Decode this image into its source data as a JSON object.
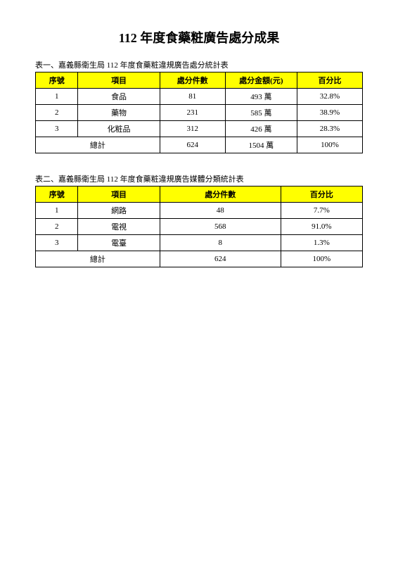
{
  "page_title": "112 年度食藥粧廣告處分成果",
  "table1": {
    "caption": "表一、嘉義縣衛生局 112 年度食藥粧違規廣告處分統計表",
    "columns": [
      "序號",
      "項目",
      "處分件數",
      "處分金額(元)",
      "百分比"
    ],
    "rows": [
      [
        "1",
        "食品",
        "81",
        "493 萬",
        "32.8%"
      ],
      [
        "2",
        "藥物",
        "231",
        "585 萬",
        "38.9%"
      ],
      [
        "3",
        "化粧品",
        "312",
        "426 萬",
        "28.3%"
      ]
    ],
    "total_label": "總計",
    "total_values": [
      "624",
      "1504 萬",
      "100%"
    ],
    "header_bg": "#ffff00",
    "border_color": "#000000",
    "font_size": 11,
    "col_widths": [
      "13%",
      "25%",
      "20%",
      "22%",
      "20%"
    ]
  },
  "table2": {
    "caption": "表二、嘉義縣衛生局 112 年度食藥粧違規廣告媒體分類統計表",
    "columns": [
      "序號",
      "項目",
      "處分件數",
      "百分比"
    ],
    "rows": [
      [
        "1",
        "網路",
        "48",
        "7.7%"
      ],
      [
        "2",
        "電視",
        "568",
        "91.0%"
      ],
      [
        "3",
        "電臺",
        "8",
        "1.3%"
      ]
    ],
    "total_label": "總計",
    "total_values": [
      "624",
      "100%"
    ],
    "header_bg": "#ffff00",
    "border_color": "#000000",
    "font_size": 11,
    "col_widths": [
      "13%",
      "25%",
      "37%",
      "25%"
    ]
  },
  "colors": {
    "background": "#ffffff",
    "text": "#000000",
    "header_bg": "#ffff00"
  }
}
